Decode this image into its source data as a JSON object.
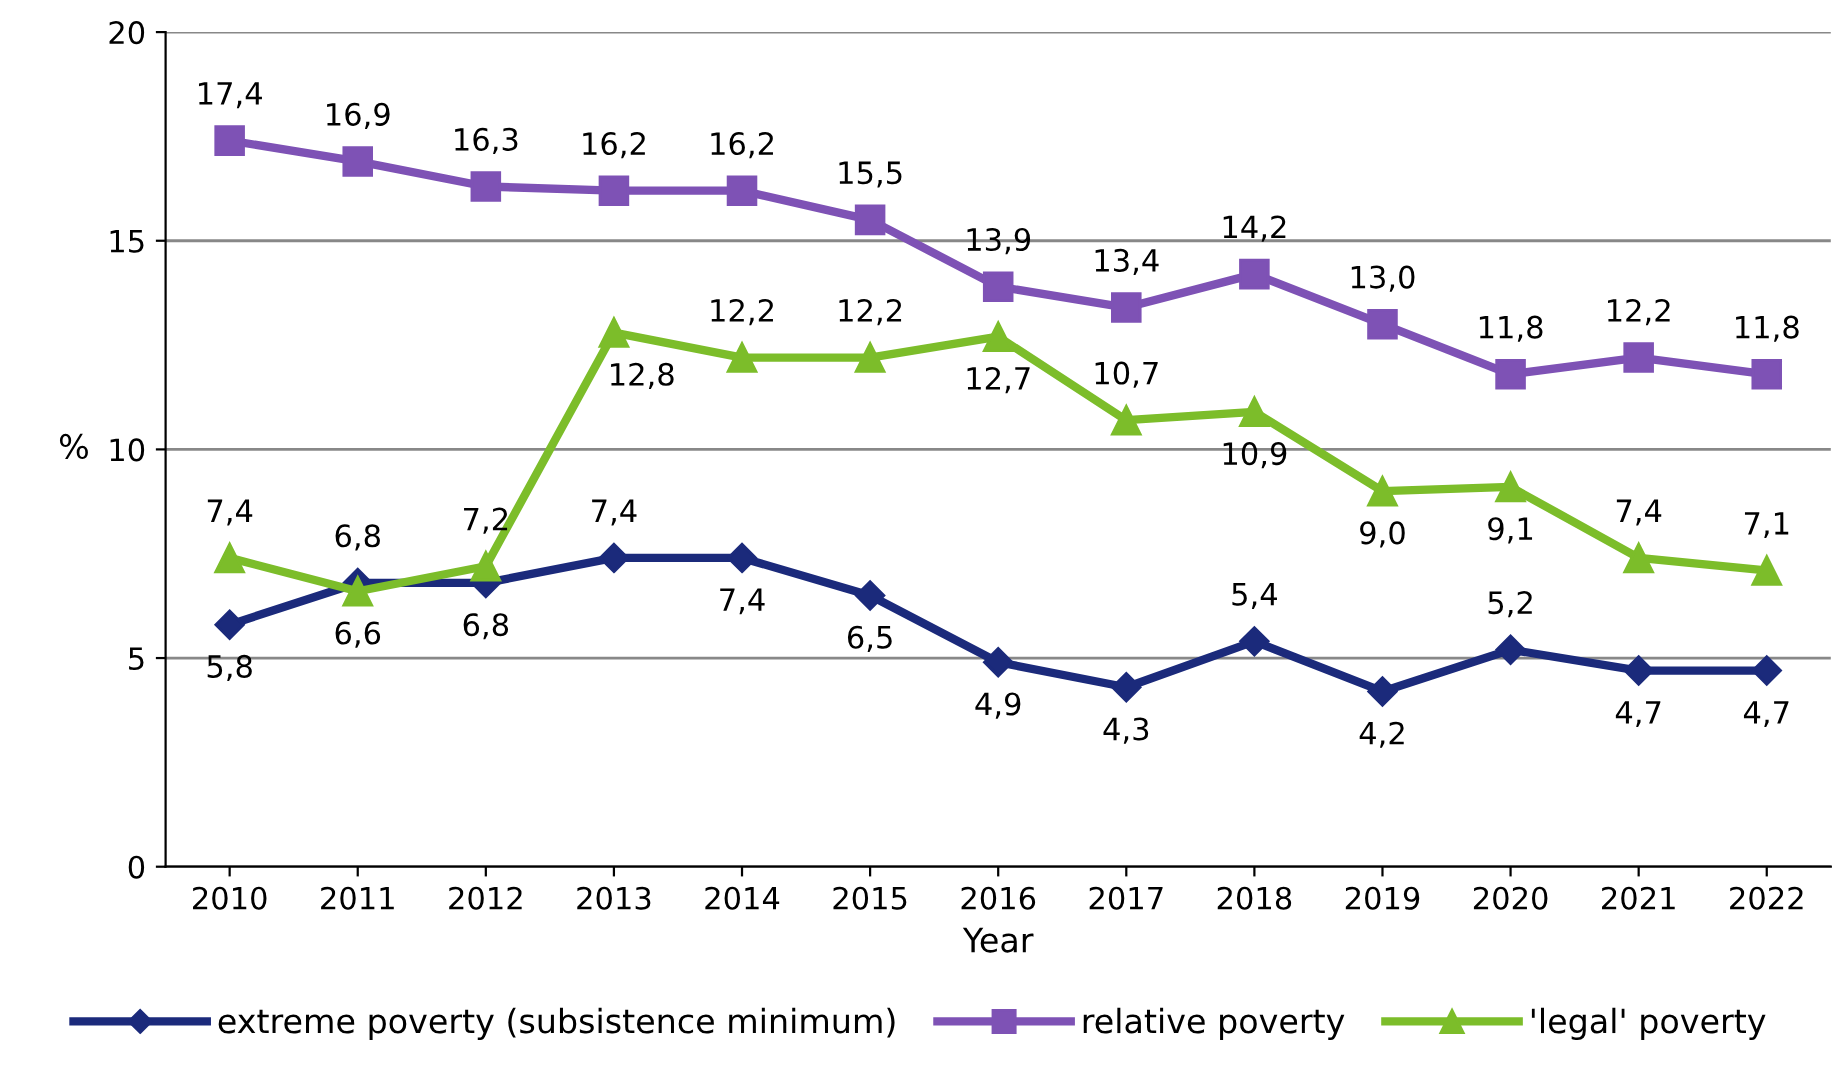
{
  "chart_data": {
    "type": "line",
    "xlabel": "Year",
    "ylabel": "%",
    "categories": [
      "2010",
      "2011",
      "2012",
      "2013",
      "2014",
      "2015",
      "2016",
      "2017",
      "2018",
      "2019",
      "2020",
      "2021",
      "2022"
    ],
    "ylim": [
      0,
      20
    ],
    "yticks": [
      0,
      5,
      10,
      15,
      20
    ],
    "grid": "y",
    "legend": "bottom",
    "series": [
      {
        "name": "extreme poverty (subsistence minimum)",
        "color": "#1b2a7b",
        "marker": "diamond",
        "values": [
          5.8,
          6.8,
          6.8,
          7.4,
          7.4,
          6.5,
          4.9,
          4.3,
          5.4,
          4.2,
          5.2,
          4.7,
          4.7
        ],
        "value_labels": [
          "5,8",
          "6,8",
          "6,8",
          "7,4",
          "7,4",
          "6,5",
          "4,9",
          "4,3",
          "5,4",
          "4,2",
          "5,2",
          "4,7",
          "4,7"
        ]
      },
      {
        "name": "relative poverty",
        "color": "#7e52b5",
        "marker": "square",
        "values": [
          17.4,
          16.9,
          16.3,
          16.2,
          16.2,
          15.5,
          13.9,
          13.4,
          14.2,
          13.0,
          11.8,
          12.2,
          11.8
        ],
        "value_labels": [
          "17,4",
          "16,9",
          "16,3",
          "16,2",
          "16,2",
          "15,5",
          "13,9",
          "13,4",
          "14,2",
          "13,0",
          "11,8",
          "12,2",
          "11,8"
        ]
      },
      {
        "name": "'legal' poverty",
        "color": "#7cbd2a",
        "marker": "triangle",
        "values": [
          7.4,
          6.6,
          7.2,
          12.8,
          12.2,
          12.2,
          12.7,
          10.7,
          10.9,
          9.0,
          9.1,
          7.4,
          7.1
        ],
        "value_labels": [
          "7,4",
          "6,6",
          "7,2",
          "12,8",
          "12,2",
          "12,2",
          "12,7",
          "10,7",
          "10,9",
          "9,0",
          "9,1",
          "7,4",
          "7,1"
        ]
      }
    ]
  }
}
